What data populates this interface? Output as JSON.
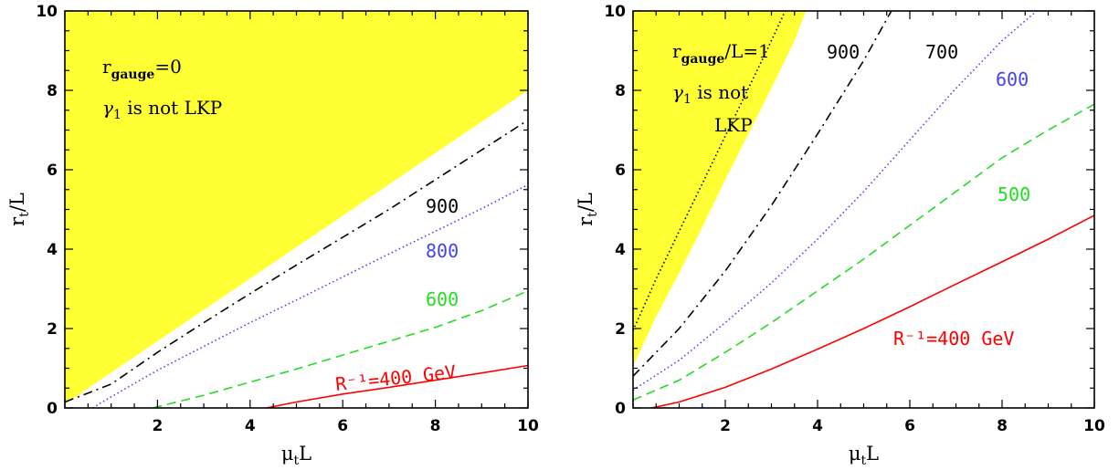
{
  "chart_data": [
    {
      "type": "line",
      "xlabel": "μ_t L",
      "ylabel": "r_t/L",
      "xlim": [
        0,
        10
      ],
      "ylim": [
        0,
        10
      ],
      "x_ticks": [
        "2",
        "4",
        "6",
        "8",
        "10"
      ],
      "y_ticks": [
        "0",
        "2",
        "4",
        "6",
        "8",
        "10"
      ],
      "grid": false,
      "shaded_region": {
        "color": "#ffff33",
        "boundary": [
          [
            0,
            0.1
          ],
          [
            10,
            8.0
          ]
        ]
      },
      "annotations": {
        "condition_label": "r",
        "condition_sub": "gauge",
        "condition_tail": "=0",
        "lkp_symbol": "γ",
        "lkp_sub": "1",
        "lkp_text": "is not LKP"
      },
      "series": [
        {
          "name": "R⁻¹=400 GeV",
          "color": "#ff0000",
          "dash": "solid",
          "points": [
            [
              4.35,
              0
            ],
            [
              5,
              0.15
            ],
            [
              6,
              0.35
            ],
            [
              7,
              0.52
            ],
            [
              8,
              0.7
            ],
            [
              9,
              0.88
            ],
            [
              10,
              1.07
            ]
          ]
        },
        {
          "name": "600",
          "color": "#22dd22",
          "dash": "dashed",
          "points": [
            [
              1.9,
              0
            ],
            [
              2,
              0.03
            ],
            [
              3,
              0.32
            ],
            [
              4,
              0.65
            ],
            [
              5,
              0.98
            ],
            [
              6,
              1.33
            ],
            [
              7,
              1.68
            ],
            [
              8,
              2.03
            ],
            [
              9,
              2.45
            ],
            [
              10,
              2.95
            ]
          ]
        },
        {
          "name": "800",
          "color": "#4444ee",
          "dash": "dotted",
          "points": [
            [
              0.6,
              0
            ],
            [
              1,
              0.28
            ],
            [
              2,
              0.95
            ],
            [
              3,
              1.55
            ],
            [
              4,
              2.15
            ],
            [
              5,
              2.72
            ],
            [
              6,
              3.3
            ],
            [
              7,
              3.88
            ],
            [
              8,
              4.45
            ],
            [
              9,
              5.02
            ],
            [
              10,
              5.62
            ]
          ]
        },
        {
          "name": "900",
          "color": "#000000",
          "dash": "dashdot",
          "points": [
            [
              0,
              0.15
            ],
            [
              1,
              0.6
            ],
            [
              2,
              1.4
            ],
            [
              3,
              2.15
            ],
            [
              4,
              2.88
            ],
            [
              5,
              3.6
            ],
            [
              6,
              4.3
            ],
            [
              7,
              5.0
            ],
            [
              8,
              5.75
            ],
            [
              9,
              6.5
            ],
            [
              10,
              7.25
            ]
          ]
        }
      ]
    },
    {
      "type": "line",
      "xlabel": "μ_t L",
      "ylabel": "r_t/L",
      "xlim": [
        0,
        10
      ],
      "ylim": [
        0,
        10
      ],
      "x_ticks": [
        "2",
        "4",
        "6",
        "8",
        "10"
      ],
      "y_ticks": [
        "0",
        "2",
        "4",
        "6",
        "8",
        "10"
      ],
      "grid": false,
      "shaded_region": {
        "color": "#ffff33",
        "boundary": [
          [
            0,
            1.05
          ],
          [
            0.5,
            2.3
          ],
          [
            1,
            3.4
          ],
          [
            1.5,
            4.55
          ],
          [
            2,
            5.75
          ],
          [
            2.5,
            6.9
          ],
          [
            3,
            8.05
          ],
          [
            3.5,
            9.25
          ],
          [
            3.75,
            10
          ]
        ]
      },
      "annotations": {
        "condition_label": "r",
        "condition_sub": "gauge",
        "condition_tail": "/L=1",
        "lkp_symbol": "γ",
        "lkp_sub": "1",
        "lkp_text": "is not",
        "lkp_text2": "LKP"
      },
      "series": [
        {
          "name": "R⁻¹=400 GeV",
          "color": "#ff0000",
          "dash": "solid",
          "points": [
            [
              0.4,
              0
            ],
            [
              1,
              0.15
            ],
            [
              2,
              0.52
            ],
            [
              3,
              0.98
            ],
            [
              4,
              1.48
            ],
            [
              5,
              2.0
            ],
            [
              6,
              2.55
            ],
            [
              7,
              3.12
            ],
            [
              8,
              3.68
            ],
            [
              9,
              4.25
            ],
            [
              10,
              4.85
            ]
          ]
        },
        {
          "name": "500",
          "color": "#22dd22",
          "dash": "dashed",
          "points": [
            [
              0,
              0.2
            ],
            [
              1,
              0.7
            ],
            [
              2,
              1.4
            ],
            [
              3,
              2.15
            ],
            [
              4,
              2.95
            ],
            [
              5,
              3.75
            ],
            [
              6,
              4.6
            ],
            [
              7,
              5.45
            ],
            [
              8,
              6.3
            ],
            [
              9,
              7.0
            ],
            [
              10,
              7.65
            ]
          ]
        },
        {
          "name": "600",
          "color": "#4444ee",
          "dash": "dotted",
          "points": [
            [
              0,
              0.45
            ],
            [
              1,
              1.2
            ],
            [
              2,
              2.15
            ],
            [
              3,
              3.15
            ],
            [
              4,
              4.25
            ],
            [
              5,
              5.45
            ],
            [
              6,
              6.75
            ],
            [
              7,
              8.05
            ],
            [
              8,
              9.25
            ],
            [
              8.75,
              10
            ]
          ]
        },
        {
          "name": "700",
          "color": "#000000",
          "dash": "dashdot",
          "points": [
            [
              0,
              0.8
            ],
            [
              1,
              2.0
            ],
            [
              2,
              3.45
            ],
            [
              3,
              5.1
            ],
            [
              4,
              6.9
            ],
            [
              5,
              8.75
            ],
            [
              5.6,
              10
            ]
          ]
        },
        {
          "name": "900",
          "color": "#000000",
          "dash": "dotted",
          "points": [
            [
              0,
              1.95
            ],
            [
              0.5,
              3.25
            ],
            [
              1,
              4.45
            ],
            [
              1.5,
              5.65
            ],
            [
              2,
              6.85
            ],
            [
              2.5,
              8.05
            ],
            [
              3,
              9.25
            ],
            [
              3.3,
              10
            ]
          ]
        }
      ]
    }
  ]
}
